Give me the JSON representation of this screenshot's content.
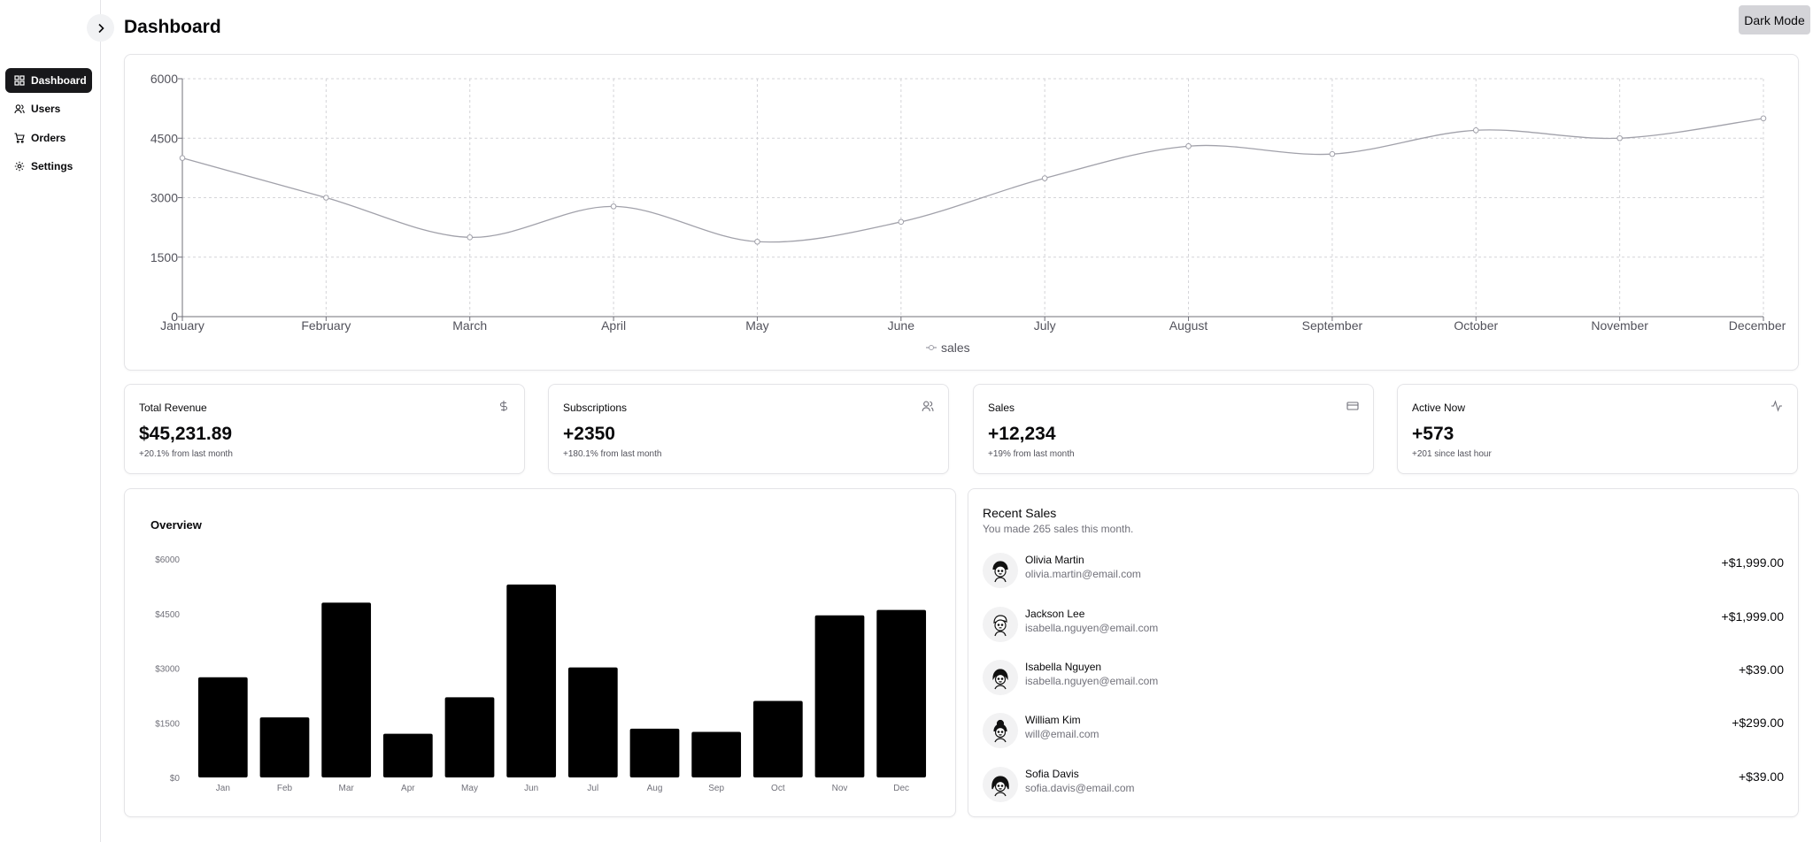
{
  "page": {
    "title": "Dashboard"
  },
  "header": {
    "dark_mode_label": "Dark Mode"
  },
  "sidebar": {
    "items": [
      {
        "label": "Dashboard",
        "icon": "grid-icon",
        "active": true
      },
      {
        "label": "Users",
        "icon": "users-icon",
        "active": false
      },
      {
        "label": "Orders",
        "icon": "cart-icon",
        "active": false
      },
      {
        "label": "Settings",
        "icon": "gear-icon",
        "active": false
      }
    ]
  },
  "stats": [
    {
      "title": "Total Revenue",
      "value": "$45,231.89",
      "note": "+20.1% from last month",
      "icon": "dollar-icon"
    },
    {
      "title": "Subscriptions",
      "value": "+2350",
      "note": "+180.1% from last month",
      "icon": "users-icon"
    },
    {
      "title": "Sales",
      "value": "+12,234",
      "note": "+19% from last month",
      "icon": "credit-card-icon"
    },
    {
      "title": "Active Now",
      "value": "+573",
      "note": "+201 since last hour",
      "icon": "activity-icon"
    }
  ],
  "overview": {
    "title": "Overview"
  },
  "recent_sales": {
    "title": "Recent Sales",
    "subtitle": "You made 265 sales this month.",
    "items": [
      {
        "name": "Olivia Martin",
        "email": "olivia.martin@email.com",
        "amount": "+$1,999.00"
      },
      {
        "name": "Jackson Lee",
        "email": "isabella.nguyen@email.com",
        "amount": "+$1,999.00"
      },
      {
        "name": "Isabella Nguyen",
        "email": "isabella.nguyen@email.com",
        "amount": "+$39.00"
      },
      {
        "name": "William Kim",
        "email": "will@email.com",
        "amount": "+$299.00"
      },
      {
        "name": "Sofia Davis",
        "email": "sofia.davis@email.com",
        "amount": "+$39.00"
      }
    ]
  },
  "chart_data": [
    {
      "type": "line",
      "categories": [
        "January",
        "February",
        "March",
        "April",
        "May",
        "June",
        "July",
        "August",
        "September",
        "October",
        "November",
        "December"
      ],
      "series": [
        {
          "name": "sales",
          "values": [
            4000,
            3000,
            2000,
            2780,
            1890,
            2390,
            3490,
            4300,
            4100,
            4700,
            4500,
            5000
          ]
        }
      ],
      "yticks": [
        "0",
        "1500",
        "3000",
        "4500",
        "6000"
      ],
      "ylim": [
        0,
        6000
      ],
      "grid": true,
      "legend": "bottom-center",
      "line_color": "#a1a1aa"
    },
    {
      "type": "bar",
      "categories": [
        "Jan",
        "Feb",
        "Mar",
        "Apr",
        "May",
        "Jun",
        "Jul",
        "Aug",
        "Sep",
        "Oct",
        "Nov",
        "Dec"
      ],
      "values": [
        2750,
        1650,
        4800,
        1200,
        2200,
        5300,
        3020,
        1340,
        1250,
        2100,
        4450,
        4600
      ],
      "yticks": [
        "$0",
        "$1500",
        "$3000",
        "$4500",
        "$6000"
      ],
      "ylim": [
        0,
        6000
      ],
      "grid": false,
      "bar_color": "#000000"
    }
  ]
}
